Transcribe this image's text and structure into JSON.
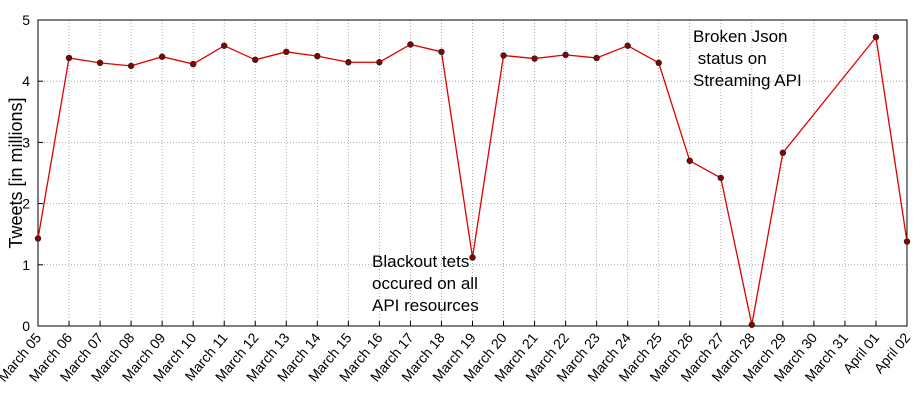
{
  "chart_data": {
    "type": "line",
    "ylabel": "Tweets [in millions]",
    "categories": [
      "March 05",
      "March 06",
      "March 07",
      "March 08",
      "March 09",
      "March 10",
      "March 11",
      "March 12",
      "March 13",
      "March 14",
      "March 15",
      "March 16",
      "March 17",
      "March 18",
      "March 19",
      "March 20",
      "March 21",
      "March 22",
      "March 23",
      "March 24",
      "March 25",
      "March 26",
      "March 27",
      "March 28",
      "March 29",
      "March 30",
      "March 31",
      "April 01",
      "April 02"
    ],
    "series": [
      {
        "color": "#e00000",
        "x": [
          "March 05",
          "March 06",
          "March 07",
          "March 08",
          "March 09",
          "March 10",
          "March 11",
          "March 12",
          "March 13",
          "March 14",
          "March 15",
          "March 16",
          "March 17",
          "March 18",
          "March 19",
          "March 20",
          "March 21",
          "March 22",
          "March 23",
          "March 24",
          "March 25",
          "March 26",
          "March 27",
          "March 28",
          "March 29",
          "April 01",
          "April 02"
        ],
        "values": [
          1.43,
          4.38,
          4.3,
          4.25,
          4.4,
          4.28,
          4.58,
          4.35,
          4.48,
          4.41,
          4.31,
          4.31,
          4.6,
          4.48,
          1.12,
          4.42,
          4.37,
          4.43,
          4.38,
          4.58,
          4.3,
          2.7,
          2.42,
          0.02,
          2.83,
          4.72,
          1.38
        ]
      }
    ],
    "ylim": [
      0,
      5
    ],
    "yticks": [
      0,
      1,
      2,
      3,
      4,
      5
    ],
    "grid": true,
    "annotations": [
      {
        "lines": [
          "Broken Json",
          " status on",
          "Streaming API"
        ]
      },
      {
        "lines": [
          "Blackout tets",
          "occured on all",
          "API resources"
        ]
      }
    ]
  }
}
